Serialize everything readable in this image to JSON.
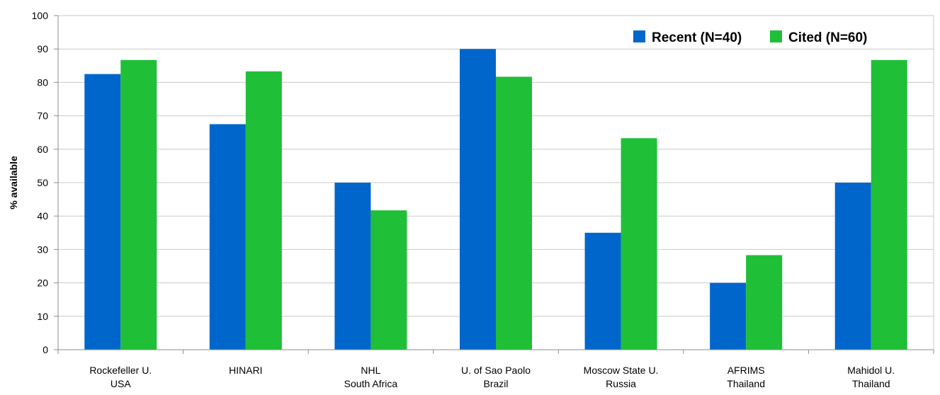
{
  "chart_data": {
    "type": "bar",
    "title": "",
    "xlabel": "",
    "ylabel": "% available",
    "ylim": [
      0,
      100
    ],
    "yticks": [
      0,
      10,
      20,
      30,
      40,
      50,
      60,
      70,
      80,
      90,
      100
    ],
    "grid": true,
    "legend_position": "top-right",
    "categories": [
      [
        "Rockefeller U.",
        "USA"
      ],
      [
        "HINARI"
      ],
      [
        "NHL",
        "South Africa"
      ],
      [
        "U. of Sao Paolo",
        "Brazil"
      ],
      [
        "Moscow State U.",
        "Russia"
      ],
      [
        "AFRIMS",
        "Thailand"
      ],
      [
        "Mahidol U.",
        "Thailand"
      ]
    ],
    "series": [
      {
        "name": "Recent (N=40)",
        "color": "#0066cc",
        "values": [
          82.5,
          67.5,
          50,
          90,
          35,
          20,
          50
        ]
      },
      {
        "name": "Cited (N=60)",
        "color": "#1fbf38",
        "values": [
          86.7,
          83.3,
          41.7,
          81.7,
          63.3,
          28.3,
          86.7
        ]
      }
    ]
  }
}
